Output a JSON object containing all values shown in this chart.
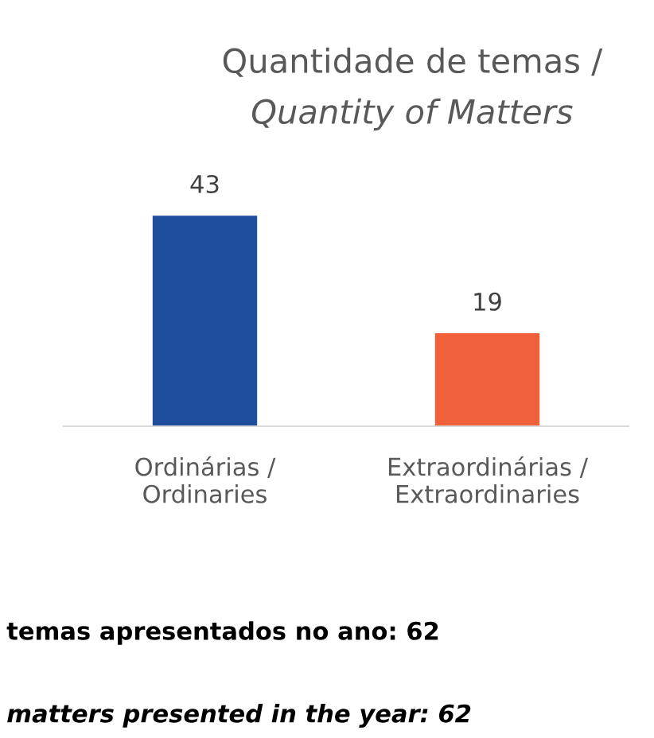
{
  "chart_data": {
    "type": "bar",
    "title": "Quantidade de temas /",
    "subtitle": "Quantity of Matters",
    "categories": [
      "Ordinárias /\nOrdinaries",
      "Extraordinárias /\nExtraordinaries"
    ],
    "values": [
      43,
      19
    ],
    "colors": [
      "#1f4e9c",
      "#f0603a"
    ],
    "data_labels": true,
    "grid": false,
    "legend": false,
    "annotations": [
      "temas apresentados no ano: 62",
      "matters presented in the year: 62"
    ]
  }
}
